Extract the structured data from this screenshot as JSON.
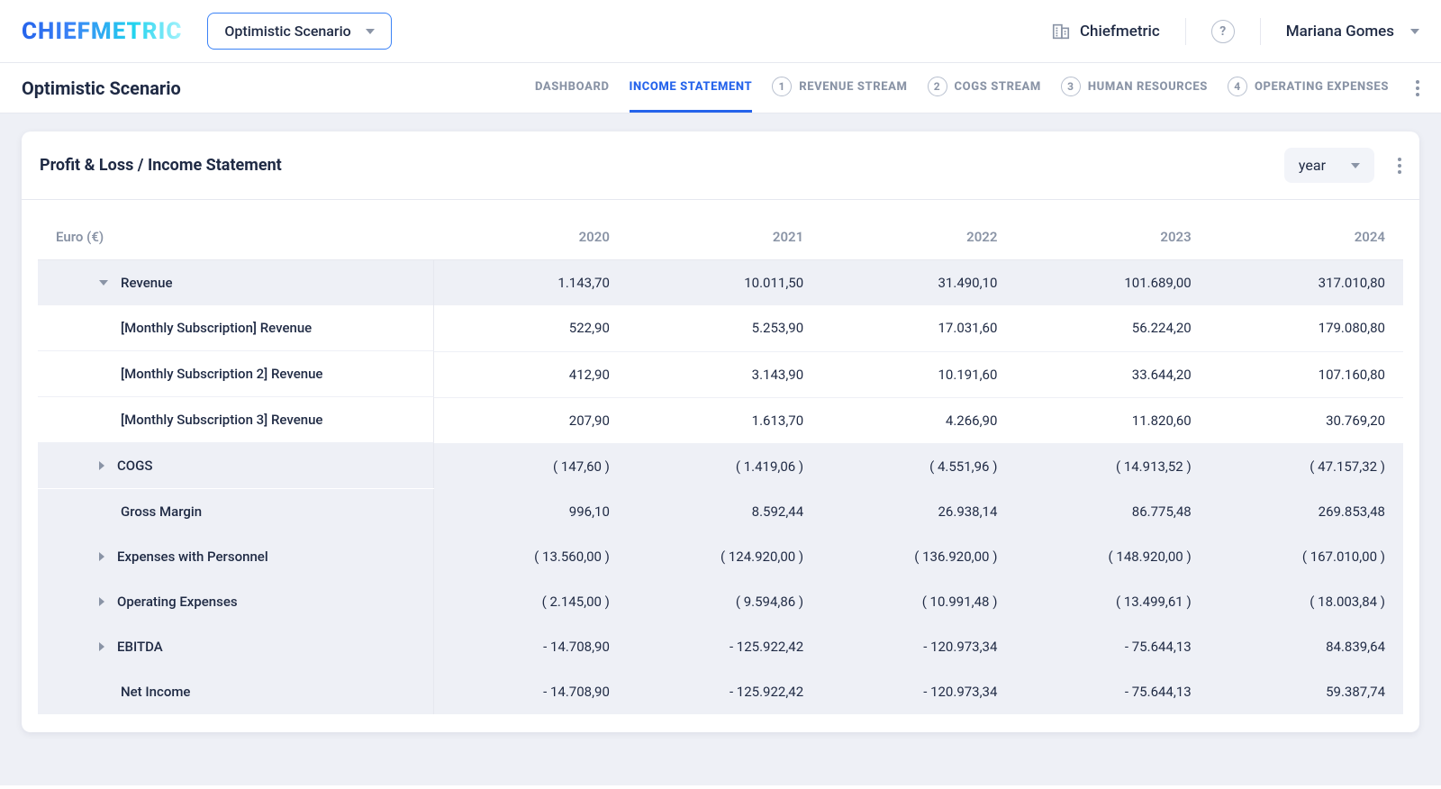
{
  "brand": "CHIEFMETRIC",
  "scenario_selector": {
    "label": "Optimistic Scenario"
  },
  "org": {
    "name": "Chiefmetric"
  },
  "user": {
    "name": "Mariana Gomes"
  },
  "page_title": "Optimistic Scenario",
  "tabs": {
    "dashboard": "DASHBOARD",
    "income": "INCOME STATEMENT",
    "revenue": "REVENUE STREAM",
    "cogs": "COGS STREAM",
    "hr": "HUMAN RESOURCES",
    "opex": "OPERATING EXPENSES"
  },
  "card": {
    "title": "Profit & Loss / Income Statement",
    "period_label": "year"
  },
  "table": {
    "header_label": "Euro (€)",
    "years": [
      "2020",
      "2021",
      "2022",
      "2023",
      "2024"
    ],
    "rows": [
      {
        "kind": "summary",
        "expand": "down",
        "indent": 1,
        "label": "Revenue",
        "values": [
          "1.143,70",
          "10.011,50",
          "31.490,10",
          "101.689,00",
          "317.010,80"
        ]
      },
      {
        "kind": "detail",
        "indent": 2,
        "label": "[Monthly Subscription] Revenue",
        "values": [
          "522,90",
          "5.253,90",
          "17.031,60",
          "56.224,20",
          "179.080,80"
        ]
      },
      {
        "kind": "detail",
        "indent": 2,
        "label": "[Monthly Subscription 2] Revenue",
        "values": [
          "412,90",
          "3.143,90",
          "10.191,60",
          "33.644,20",
          "107.160,80"
        ]
      },
      {
        "kind": "detail",
        "indent": 2,
        "label": "[Monthly Subscription 3] Revenue",
        "values": [
          "207,90",
          "1.613,70",
          "4.266,90",
          "11.820,60",
          "30.769,20"
        ]
      },
      {
        "kind": "summary",
        "expand": "right",
        "indent": 1,
        "label": "COGS",
        "values": [
          "(  147,60 )",
          "(  1.419,06 )",
          "(  4.551,96 )",
          "(  14.913,52 )",
          "(  47.157,32 )"
        ]
      },
      {
        "kind": "summary",
        "expand": "none",
        "indent": 2,
        "label": "Gross Margin",
        "values": [
          "996,10",
          "8.592,44",
          "26.938,14",
          "86.775,48",
          "269.853,48"
        ]
      },
      {
        "kind": "summary",
        "expand": "right",
        "indent": 1,
        "label": "Expenses with Personnel",
        "values": [
          "(  13.560,00 )",
          "(  124.920,00 )",
          "(  136.920,00 )",
          "(  148.920,00 )",
          "(  167.010,00 )"
        ]
      },
      {
        "kind": "summary",
        "expand": "right",
        "indent": 1,
        "label": "Operating Expenses",
        "values": [
          "(  2.145,00 )",
          "(  9.594,86 )",
          "(  10.991,48 )",
          "(  13.499,61 )",
          "(  18.003,84 )"
        ]
      },
      {
        "kind": "summary",
        "expand": "right",
        "indent": 1,
        "label": "EBITDA",
        "values": [
          "- 14.708,90",
          "- 125.922,42",
          "- 120.973,34",
          "- 75.644,13",
          "84.839,64"
        ]
      },
      {
        "kind": "summary",
        "expand": "none",
        "indent": 2,
        "label": "Net Income",
        "values": [
          "- 14.708,90",
          "- 125.922,42",
          "- 120.973,34",
          "- 75.644,13",
          "59.387,74"
        ]
      }
    ]
  },
  "colors": {
    "accent": "#2563eb",
    "muted": "#8a94a6",
    "canvas": "#eef0f6",
    "border": "#e6e8ef"
  }
}
